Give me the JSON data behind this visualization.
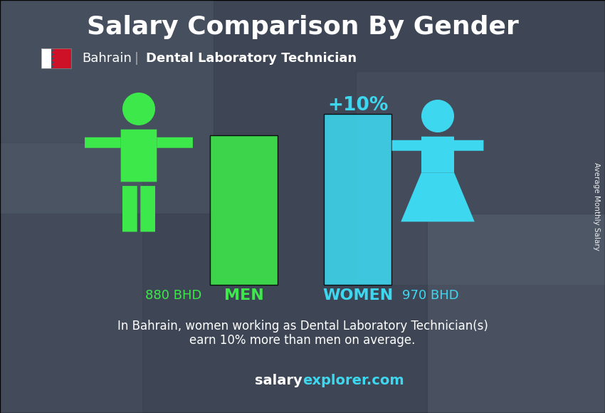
{
  "title": "Salary Comparison By Gender",
  "subtitle_country": "Bahrain",
  "subtitle_job": "Dental Laboratory Technician",
  "man_salary": 880,
  "woman_salary": 970,
  "currency": "BHD",
  "difference_pct": "+10%",
  "man_label": "MEN",
  "woman_label": "WOMEN",
  "man_color": "#3de84a",
  "woman_color": "#3dd8f0",
  "man_bar_color": "#3de84a",
  "woman_bar_color": "#3dd8f0",
  "bg_color": "#4a5060",
  "title_color": "#ffffff",
  "subtitle_color": "#ffffff",
  "text_color": "#ffffff",
  "footer_text_line1": "In Bahrain, women working as Dental Laboratory Technician(s)",
  "footer_text_line2": "earn 10% more than men on average.",
  "website_part1": "salary",
  "website_part2": "explorer.com",
  "website_color": "#3dd8f0",
  "side_label": "Average Monthly Salary",
  "man_salary_label": "880 BHD",
  "woman_salary_label": "970 BHD",
  "diff_label_color": "#3dd8f0",
  "flag_white": "#ffffff",
  "flag_red": "#ce1126"
}
